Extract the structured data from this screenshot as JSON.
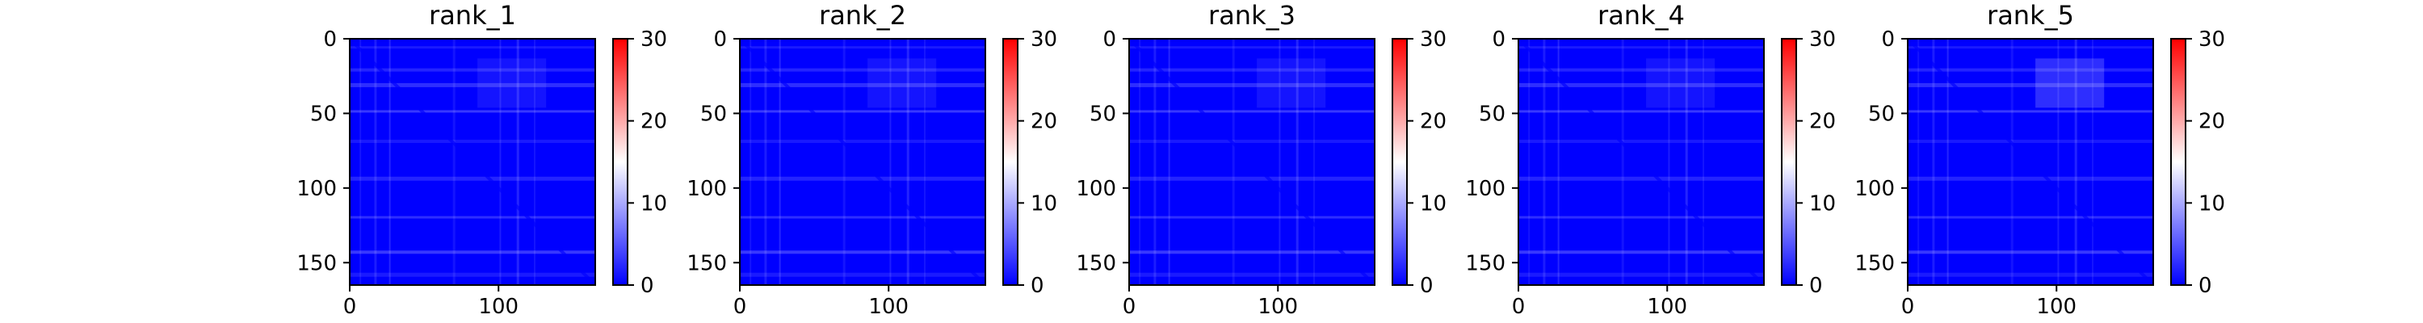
{
  "chart_data": [
    {
      "type": "heatmap",
      "title": "rank_1",
      "xlabel": "",
      "ylabel": "",
      "x_ticks": [
        "0",
        "100"
      ],
      "y_ticks": [
        "0",
        "50",
        "100",
        "150"
      ],
      "colorbar_ticks": [
        "0",
        "10",
        "20",
        "30"
      ],
      "matrix_size": 165,
      "xlim": [
        0,
        165
      ],
      "ylim": [
        165,
        0
      ],
      "color_range": [
        0,
        30
      ],
      "colormap": "bwr",
      "colors": {
        "low": "#0000ff",
        "mid": "#ffffff",
        "high": "#ff0000"
      },
      "grid": false
    },
    {
      "type": "heatmap",
      "title": "rank_2",
      "xlabel": "",
      "ylabel": "",
      "x_ticks": [
        "0",
        "100"
      ],
      "y_ticks": [
        "0",
        "50",
        "100",
        "150"
      ],
      "colorbar_ticks": [
        "0",
        "10",
        "20",
        "30"
      ],
      "matrix_size": 165,
      "xlim": [
        0,
        165
      ],
      "ylim": [
        165,
        0
      ],
      "color_range": [
        0,
        30
      ],
      "colormap": "bwr",
      "colors": {
        "low": "#0000ff",
        "mid": "#ffffff",
        "high": "#ff0000"
      },
      "grid": false
    },
    {
      "type": "heatmap",
      "title": "rank_3",
      "xlabel": "",
      "ylabel": "",
      "x_ticks": [
        "0",
        "100"
      ],
      "y_ticks": [
        "0",
        "50",
        "100",
        "150"
      ],
      "colorbar_ticks": [
        "0",
        "10",
        "20",
        "30"
      ],
      "matrix_size": 165,
      "xlim": [
        0,
        165
      ],
      "ylim": [
        165,
        0
      ],
      "color_range": [
        0,
        30
      ],
      "colormap": "bwr",
      "colors": {
        "low": "#0000ff",
        "mid": "#ffffff",
        "high": "#ff0000"
      },
      "grid": false
    },
    {
      "type": "heatmap",
      "title": "rank_4",
      "xlabel": "",
      "ylabel": "",
      "x_ticks": [
        "0",
        "100"
      ],
      "y_ticks": [
        "0",
        "50",
        "100",
        "150"
      ],
      "colorbar_ticks": [
        "0",
        "10",
        "20",
        "30"
      ],
      "matrix_size": 165,
      "xlim": [
        0,
        165
      ],
      "ylim": [
        165,
        0
      ],
      "color_range": [
        0,
        30
      ],
      "colormap": "bwr",
      "colors": {
        "low": "#0000ff",
        "mid": "#ffffff",
        "high": "#ff0000"
      },
      "grid": false
    },
    {
      "type": "heatmap",
      "title": "rank_5",
      "xlabel": "",
      "ylabel": "",
      "x_ticks": [
        "0",
        "100"
      ],
      "y_ticks": [
        "0",
        "50",
        "100",
        "150"
      ],
      "colorbar_ticks": [
        "0",
        "10",
        "20",
        "30"
      ],
      "matrix_size": 165,
      "xlim": [
        0,
        165
      ],
      "ylim": [
        165,
        0
      ],
      "color_range": [
        0,
        30
      ],
      "colormap": "bwr",
      "colors": {
        "low": "#0000ff",
        "mid": "#ffffff",
        "high": "#ff0000"
      },
      "grid": false
    }
  ]
}
